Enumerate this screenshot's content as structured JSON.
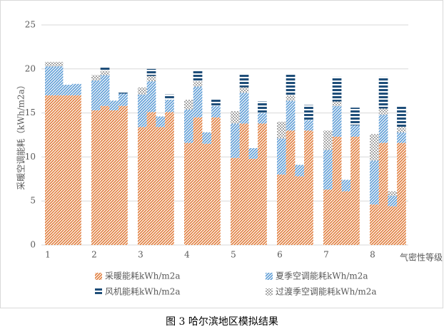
{
  "chart_data": {
    "type": "bar",
    "stacked": true,
    "caption": "图 3 哈尔滨地区模拟结果",
    "y_label": "采暖空调能耗（kWh/m2a）",
    "x_label": "气密性等级",
    "categories": [
      "1",
      null,
      null,
      null,
      "2",
      null,
      null,
      null,
      "3",
      null,
      null,
      null,
      "4",
      null,
      null,
      null,
      "5",
      null,
      null,
      null,
      "6",
      null,
      null,
      null,
      "7",
      null,
      null,
      null,
      "8",
      null,
      null,
      null
    ],
    "series": [
      {
        "name": "采暖能耗kWh/m2a",
        "color": "#e07b39",
        "pattern": "diagonal",
        "values": [
          17,
          17,
          17,
          17,
          15.3,
          15.8,
          15.3,
          15.8,
          13.4,
          15.1,
          13.4,
          15.1,
          11.6,
          14.5,
          11.5,
          14.5,
          9.9,
          13.8,
          9.8,
          13.8,
          8,
          13,
          7.8,
          13,
          6.3,
          12.3,
          6.1,
          12.3,
          4.6,
          11.6,
          4.4,
          11.6
        ]
      },
      {
        "name": "夏季空调能耗kWh/m2a",
        "color": "#5b9bd5",
        "pattern": "diagonal",
        "values": [
          3.3,
          3.3,
          1.2,
          1.3,
          3.4,
          3.5,
          1.1,
          1.4,
          3.7,
          3.5,
          1.2,
          1.4,
          3.8,
          3.5,
          1.3,
          1.3,
          3.9,
          3.5,
          1.2,
          1.2,
          4.1,
          3.4,
          1.3,
          1.2,
          4.5,
          3.5,
          1.3,
          1.3,
          5,
          3.2,
          1.2,
          1.2
        ]
      },
      {
        "name": "风机能耗kWh/m2a",
        "color": "#1f4e79",
        "pattern": "horizontal",
        "values": [
          0,
          0,
          0,
          0,
          0,
          0.4,
          0,
          0.2,
          0,
          0.8,
          0,
          0.6,
          0,
          1.2,
          0,
          0.8,
          0,
          1.6,
          0,
          1.3,
          0,
          2.4,
          0,
          1.7,
          0,
          2.8,
          0,
          2,
          0,
          3.6,
          0,
          2.4
        ]
      },
      {
        "name": "过渡季空调能耗kWh/m2a",
        "color": "#a5a5a5",
        "pattern": "checker",
        "values": [
          0.5,
          0.5,
          0,
          0,
          0.6,
          0.5,
          0,
          0,
          0.8,
          0.6,
          0,
          0,
          1.1,
          0.6,
          0,
          0,
          1.4,
          0.6,
          0,
          0,
          1.9,
          0.6,
          0,
          0,
          2.2,
          0.5,
          0,
          0,
          3,
          0.7,
          0.5,
          0.6
        ]
      }
    ],
    "ylim": [
      0,
      25
    ],
    "yticks": [
      0,
      5,
      10,
      15,
      20,
      25
    ],
    "grid": true
  }
}
